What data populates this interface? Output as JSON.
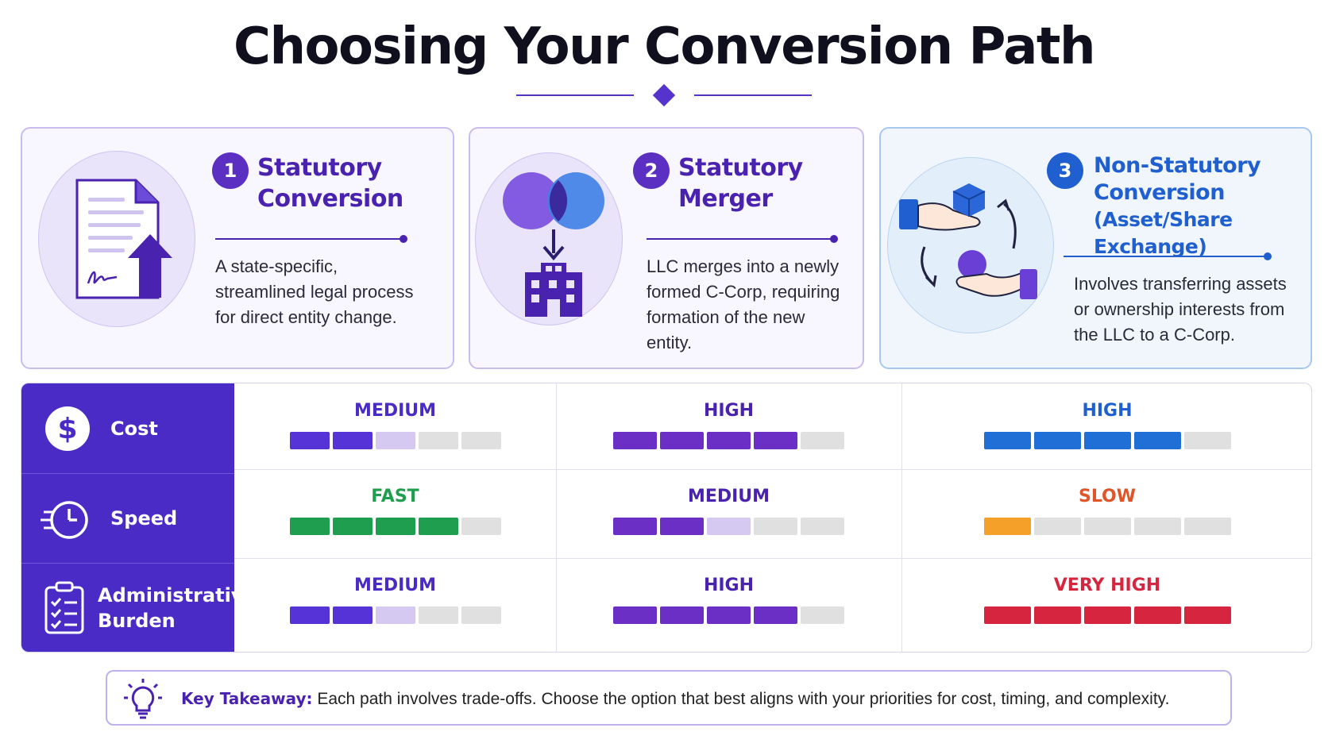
{
  "title": "Choosing Your Conversion Path",
  "colors": {
    "purple": "#4a2bc5",
    "blue": "#1f5fcf",
    "green": "#1e9e4e",
    "orange": "#f5a029",
    "red": "#d6263f",
    "empty_segment": "#e0e0e0"
  },
  "cards": [
    {
      "number": "1",
      "title_line1": "Statutory",
      "title_line2": "Conversion",
      "title_line3": "",
      "description": "A state-specific, streamlined legal process for direct entity change.",
      "icon": "document-upload-icon"
    },
    {
      "number": "2",
      "title_line1": "Statutory",
      "title_line2": "Merger",
      "title_line3": "",
      "description": "LLC merges into a newly formed C-Corp, requiring formation of the new entity.",
      "icon": "merge-building-icon"
    },
    {
      "number": "3",
      "title_line1": "Non-Statutory",
      "title_line2": "Conversion",
      "title_line3": "(Asset/Share Exchange)",
      "description": "Involves transferring assets or ownership interests from the LLC to a C-Corp.",
      "icon": "hands-exchange-icon"
    }
  ],
  "criteria": [
    {
      "label_line1": "Cost",
      "label_line2": "",
      "icon": "dollar-icon"
    },
    {
      "label_line1": "Speed",
      "label_line2": "",
      "icon": "stopwatch-icon"
    },
    {
      "label_line1": "Administrative",
      "label_line2": "Burden",
      "icon": "checklist-icon"
    }
  ],
  "ratings": [
    [
      {
        "label": "MEDIUM",
        "filled": 2,
        "partial": 1,
        "of": 5,
        "color": "#5533d6",
        "partial_color": "#d5c9f2",
        "label_color": "#4a2bc5"
      },
      {
        "label": "HIGH",
        "filled": 4,
        "partial": 0,
        "of": 5,
        "color": "#6c2fc6",
        "partial_color": "#d5c9f2",
        "label_color": "#4a22b0"
      },
      {
        "label": "HIGH",
        "filled": 4,
        "partial": 0,
        "of": 5,
        "color": "#1f6fd6",
        "partial_color": "#c7dcf5",
        "label_color": "#1f5fcf"
      }
    ],
    [
      {
        "label": "FAST",
        "filled": 4,
        "partial": 0,
        "of": 5,
        "color": "#1e9e4e",
        "partial_color": "#cdebd8",
        "label_color": "#1e9e4e"
      },
      {
        "label": "MEDIUM",
        "filled": 2,
        "partial": 1,
        "of": 5,
        "color": "#6c2fc6",
        "partial_color": "#d5c9f2",
        "label_color": "#4a22b0"
      },
      {
        "label": "SLOW",
        "filled": 1,
        "partial": 0,
        "of": 5,
        "color": "#f5a029",
        "partial_color": "#fbe3bf",
        "label_color": "#e0542a"
      }
    ],
    [
      {
        "label": "MEDIUM",
        "filled": 2,
        "partial": 1,
        "of": 5,
        "color": "#5533d6",
        "partial_color": "#d5c9f2",
        "label_color": "#4a2bc5"
      },
      {
        "label": "HIGH",
        "filled": 4,
        "partial": 0,
        "of": 5,
        "color": "#6c2fc6",
        "partial_color": "#d5c9f2",
        "label_color": "#4a22b0"
      },
      {
        "label": "VERY HIGH",
        "filled": 5,
        "partial": 0,
        "of": 5,
        "color": "#d6263f",
        "partial_color": "#f4c6cd",
        "label_color": "#d6263f"
      }
    ]
  ],
  "takeaway": {
    "label": "Key Takeaway:",
    "text": " Each path involves trade-offs. Choose the option that best aligns with your priorities for cost, timing, and complexity.",
    "icon": "lightbulb-icon"
  }
}
